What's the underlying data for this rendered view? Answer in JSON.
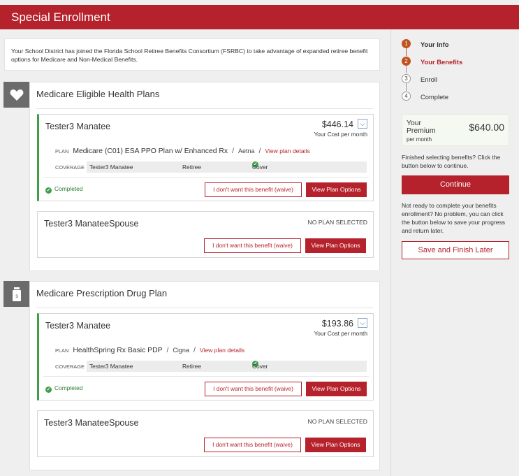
{
  "header": {
    "title": "Special Enrollment"
  },
  "notice": {
    "text": "Your School District has joined the Florida School Retiree Benefits Consortium (FSRBC) to take advantage of expanded retiree benefit options for Medicare and Non-Medical Benefits."
  },
  "sections": [
    {
      "title": "Medicare Eligible Health Plans",
      "icon": "heart-icon",
      "member": {
        "name": "Tester3 Manatee",
        "cost": "$446.14",
        "cost_sub": "Your Cost per month",
        "plan_label": "PLAN",
        "plan_name": "Medicare (C01) ESA PPO Plan w/ Enhanced Rx",
        "carrier": "Aetna",
        "view_details": "View plan details",
        "coverage_label": "COVERAGE",
        "coverage_name": "Tester3 Manatee",
        "coverage_type": "Retiree",
        "coverage_status": "Cover",
        "status": "Completed",
        "waive_label": "I don't want this benefit (waive)",
        "view_options_label": "View Plan Options"
      },
      "spouse": {
        "name": "Tester3 ManateeSpouse",
        "status": "NO PLAN SELECTED",
        "waive_label": "I don't want this benefit (waive)",
        "view_options_label": "View Plan Options"
      }
    },
    {
      "title": "Medicare Prescription Drug Plan",
      "icon": "pill-bottle-icon",
      "member": {
        "name": "Tester3 Manatee",
        "cost": "$193.86",
        "cost_sub": "Your Cost per month",
        "plan_label": "PLAN",
        "plan_name": "HealthSpring Rx Basic PDP",
        "carrier": "Cigna",
        "view_details": "View plan details",
        "coverage_label": "COVERAGE",
        "coverage_name": "Tester3 Manatee",
        "coverage_type": "Retiree",
        "coverage_status": "Cover",
        "status": "Completed",
        "waive_label": "I don't want this benefit (waive)",
        "view_options_label": "View Plan Options"
      },
      "spouse": {
        "name": "Tester3 ManateeSpouse",
        "status": "NO PLAN SELECTED",
        "waive_label": "I don't want this benefit (waive)",
        "view_options_label": "View Plan Options"
      }
    }
  ],
  "sidebar": {
    "steps": [
      {
        "num": "1",
        "label": "Your Info",
        "state": "done"
      },
      {
        "num": "2",
        "label": "Your Benefits",
        "state": "current"
      },
      {
        "num": "3",
        "label": "Enroll",
        "state": "todo"
      },
      {
        "num": "4",
        "label": "Complete",
        "state": "todo"
      }
    ],
    "premium": {
      "label": "Your Premium",
      "sub": "per month",
      "amount": "$640.00"
    },
    "finished_text": "Finished selecting benefits? Click the button below to continue.",
    "continue_label": "Continue",
    "not_ready_text": "Not ready to complete your benefits enrollment? No problem, you can click the button below to save your progress and return later.",
    "save_label": "Save and Finish Later"
  },
  "colors": {
    "brand": "#b5222c",
    "success": "#3f9e48",
    "step_active": "#c0521f",
    "icon_bg": "#6b6b6b"
  }
}
